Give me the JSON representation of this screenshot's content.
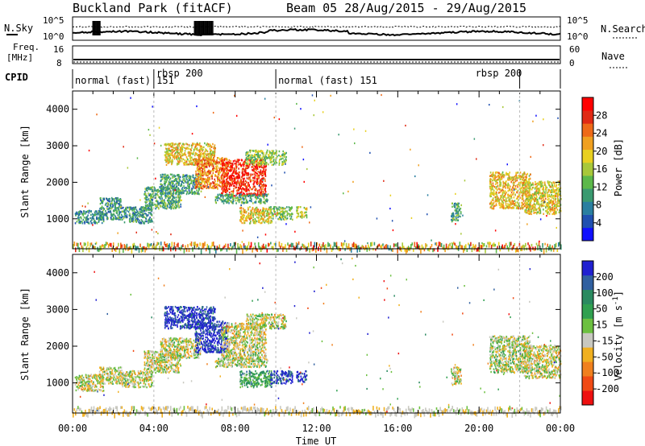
{
  "header": {
    "station": "Buckland Park (fitACF)",
    "beam_dates": "Beam 05 28/Aug/2015 - 29/Aug/2015"
  },
  "strips": {
    "nsky_label": "N.Sky",
    "nsky_ticks": [
      "10^5",
      "10^0"
    ],
    "nsearch_label": "N.Search",
    "nsearch_ticks": [
      "10^5",
      "10^0"
    ],
    "freq_label_top": "Freq.",
    "freq_label_unit": "[MHz]",
    "freq_ticks": [
      "16",
      "8"
    ],
    "nave_label": "Nave",
    "nave_ticks": [
      "60",
      "0"
    ],
    "cpid_label": "CPID",
    "cpid_segments": [
      {
        "label": "normal (fast) 151",
        "start_hour": 0.0
      },
      {
        "label": "rbsp 200",
        "start_hour": 4.0
      },
      {
        "label": "normal (fast) 151",
        "start_hour": 10.0
      },
      {
        "label": "rbsp 200",
        "start_hour": 22.0
      }
    ]
  },
  "chart_data": [
    {
      "type": "heatmap",
      "parameter": "Power",
      "ylabel": "Slant Range [km]",
      "yticks": [
        1000,
        2000,
        3000,
        4000
      ],
      "ylim": [
        180,
        4500
      ],
      "xlim": [
        0,
        24
      ],
      "colorbar": {
        "label": "Power [dB]",
        "ticks": [
          "4",
          "8",
          "12",
          "16",
          "20",
          "24",
          "28"
        ],
        "colors": [
          "#1010ff",
          "#2050b0",
          "#2a7fa0",
          "#3a9a70",
          "#5cb84a",
          "#a8c83a",
          "#e8d020",
          "#f0a020",
          "#ee6a18",
          "#e02a14",
          "#ff0000"
        ]
      },
      "patches": [
        {
          "x": [
            0.1,
            1.5
          ],
          "y": [
            900,
            1250
          ],
          "level": 0.28
        },
        {
          "x": [
            1.3,
            2.4
          ],
          "y": [
            1000,
            1600
          ],
          "level": 0.3
        },
        {
          "x": [
            2.4,
            3.9
          ],
          "y": [
            900,
            1350
          ],
          "level": 0.3
        },
        {
          "x": [
            3.5,
            5.3
          ],
          "y": [
            1300,
            1900
          ],
          "level": 0.35
        },
        {
          "x": [
            4.3,
            6.3
          ],
          "y": [
            1700,
            2250
          ],
          "level": 0.32
        },
        {
          "x": [
            4.5,
            7.0
          ],
          "y": [
            2500,
            3100
          ],
          "level": 0.6
        },
        {
          "x": [
            6.0,
            7.6
          ],
          "y": [
            1850,
            2700
          ],
          "level": 0.72
        },
        {
          "x": [
            7.3,
            9.5
          ],
          "y": [
            1650,
            2650
          ],
          "level": 0.88
        },
        {
          "x": [
            8.5,
            10.5
          ],
          "y": [
            2500,
            2900
          ],
          "level": 0.45
        },
        {
          "x": [
            7.0,
            9.6
          ],
          "y": [
            1450,
            1700
          ],
          "level": 0.35
        },
        {
          "x": [
            8.2,
            9.8
          ],
          "y": [
            900,
            1350
          ],
          "level": 0.6
        },
        {
          "x": [
            9.7,
            10.8
          ],
          "y": [
            1000,
            1350
          ],
          "level": 0.45
        },
        {
          "x": [
            11.0,
            11.5
          ],
          "y": [
            1050,
            1350
          ],
          "level": 0.55
        },
        {
          "x": [
            18.6,
            19.1
          ],
          "y": [
            950,
            1450
          ],
          "level": 0.35
        },
        {
          "x": [
            20.5,
            22.5
          ],
          "y": [
            1300,
            2300
          ],
          "level": 0.62
        },
        {
          "x": [
            22.2,
            24.0
          ],
          "y": [
            1150,
            2050
          ],
          "level": 0.58
        }
      ]
    },
    {
      "type": "heatmap",
      "parameter": "Velocity",
      "ylabel": "Slant Range [km]",
      "yticks": [
        1000,
        2000,
        3000,
        4000
      ],
      "ylim": [
        180,
        4500
      ],
      "xlim": [
        0,
        24
      ],
      "xticks": [
        "00:00",
        "04:00",
        "08:00",
        "12:00",
        "16:00",
        "20:00",
        "00:00"
      ],
      "xlabel": "Time UT",
      "colorbar": {
        "label": "Velocity [m s-1]",
        "ticks": [
          "-200",
          "-100",
          "-50",
          "-15",
          "15",
          "50",
          "100",
          "200"
        ],
        "colors": [
          "#ee1010",
          "#f04a14",
          "#f0801e",
          "#f0b020",
          "#c8c8c0",
          "#6cc040",
          "#30a050",
          "#2a8a60",
          "#3060a0",
          "#2020d0"
        ]
      },
      "patches": [
        {
          "x": [
            0.1,
            1.5
          ],
          "y": [
            800,
            1250
          ],
          "level": 0.45
        },
        {
          "x": [
            1.3,
            2.4
          ],
          "y": [
            1000,
            1450
          ],
          "level": 0.45
        },
        {
          "x": [
            2.4,
            3.9
          ],
          "y": [
            900,
            1350
          ],
          "level": 0.45
        },
        {
          "x": [
            3.5,
            5.3
          ],
          "y": [
            1300,
            1900
          ],
          "level": 0.45
        },
        {
          "x": [
            4.3,
            6.3
          ],
          "y": [
            1700,
            2250
          ],
          "level": 0.45
        },
        {
          "x": [
            4.5,
            7.0
          ],
          "y": [
            2500,
            3100
          ],
          "level": 0.95
        },
        {
          "x": [
            6.0,
            7.6
          ],
          "y": [
            1850,
            2700
          ],
          "level": 0.95
        },
        {
          "x": [
            7.3,
            9.5
          ],
          "y": [
            1650,
            2650
          ],
          "level": 0.45
        },
        {
          "x": [
            8.5,
            10.5
          ],
          "y": [
            2500,
            2900
          ],
          "level": 0.45
        },
        {
          "x": [
            7.0,
            9.6
          ],
          "y": [
            1450,
            1700
          ],
          "level": 0.5
        },
        {
          "x": [
            8.2,
            9.8
          ],
          "y": [
            900,
            1350
          ],
          "level": 0.65
        },
        {
          "x": [
            9.7,
            10.8
          ],
          "y": [
            1000,
            1350
          ],
          "level": 0.92
        },
        {
          "x": [
            11.0,
            11.5
          ],
          "y": [
            1050,
            1350
          ],
          "level": 0.92
        },
        {
          "x": [
            18.6,
            19.1
          ],
          "y": [
            950,
            1450
          ],
          "level": 0.45
        },
        {
          "x": [
            20.5,
            22.5
          ],
          "y": [
            1300,
            2300
          ],
          "level": 0.5
        },
        {
          "x": [
            22.2,
            24.0
          ],
          "y": [
            1150,
            2050
          ],
          "level": 0.45
        }
      ]
    }
  ]
}
